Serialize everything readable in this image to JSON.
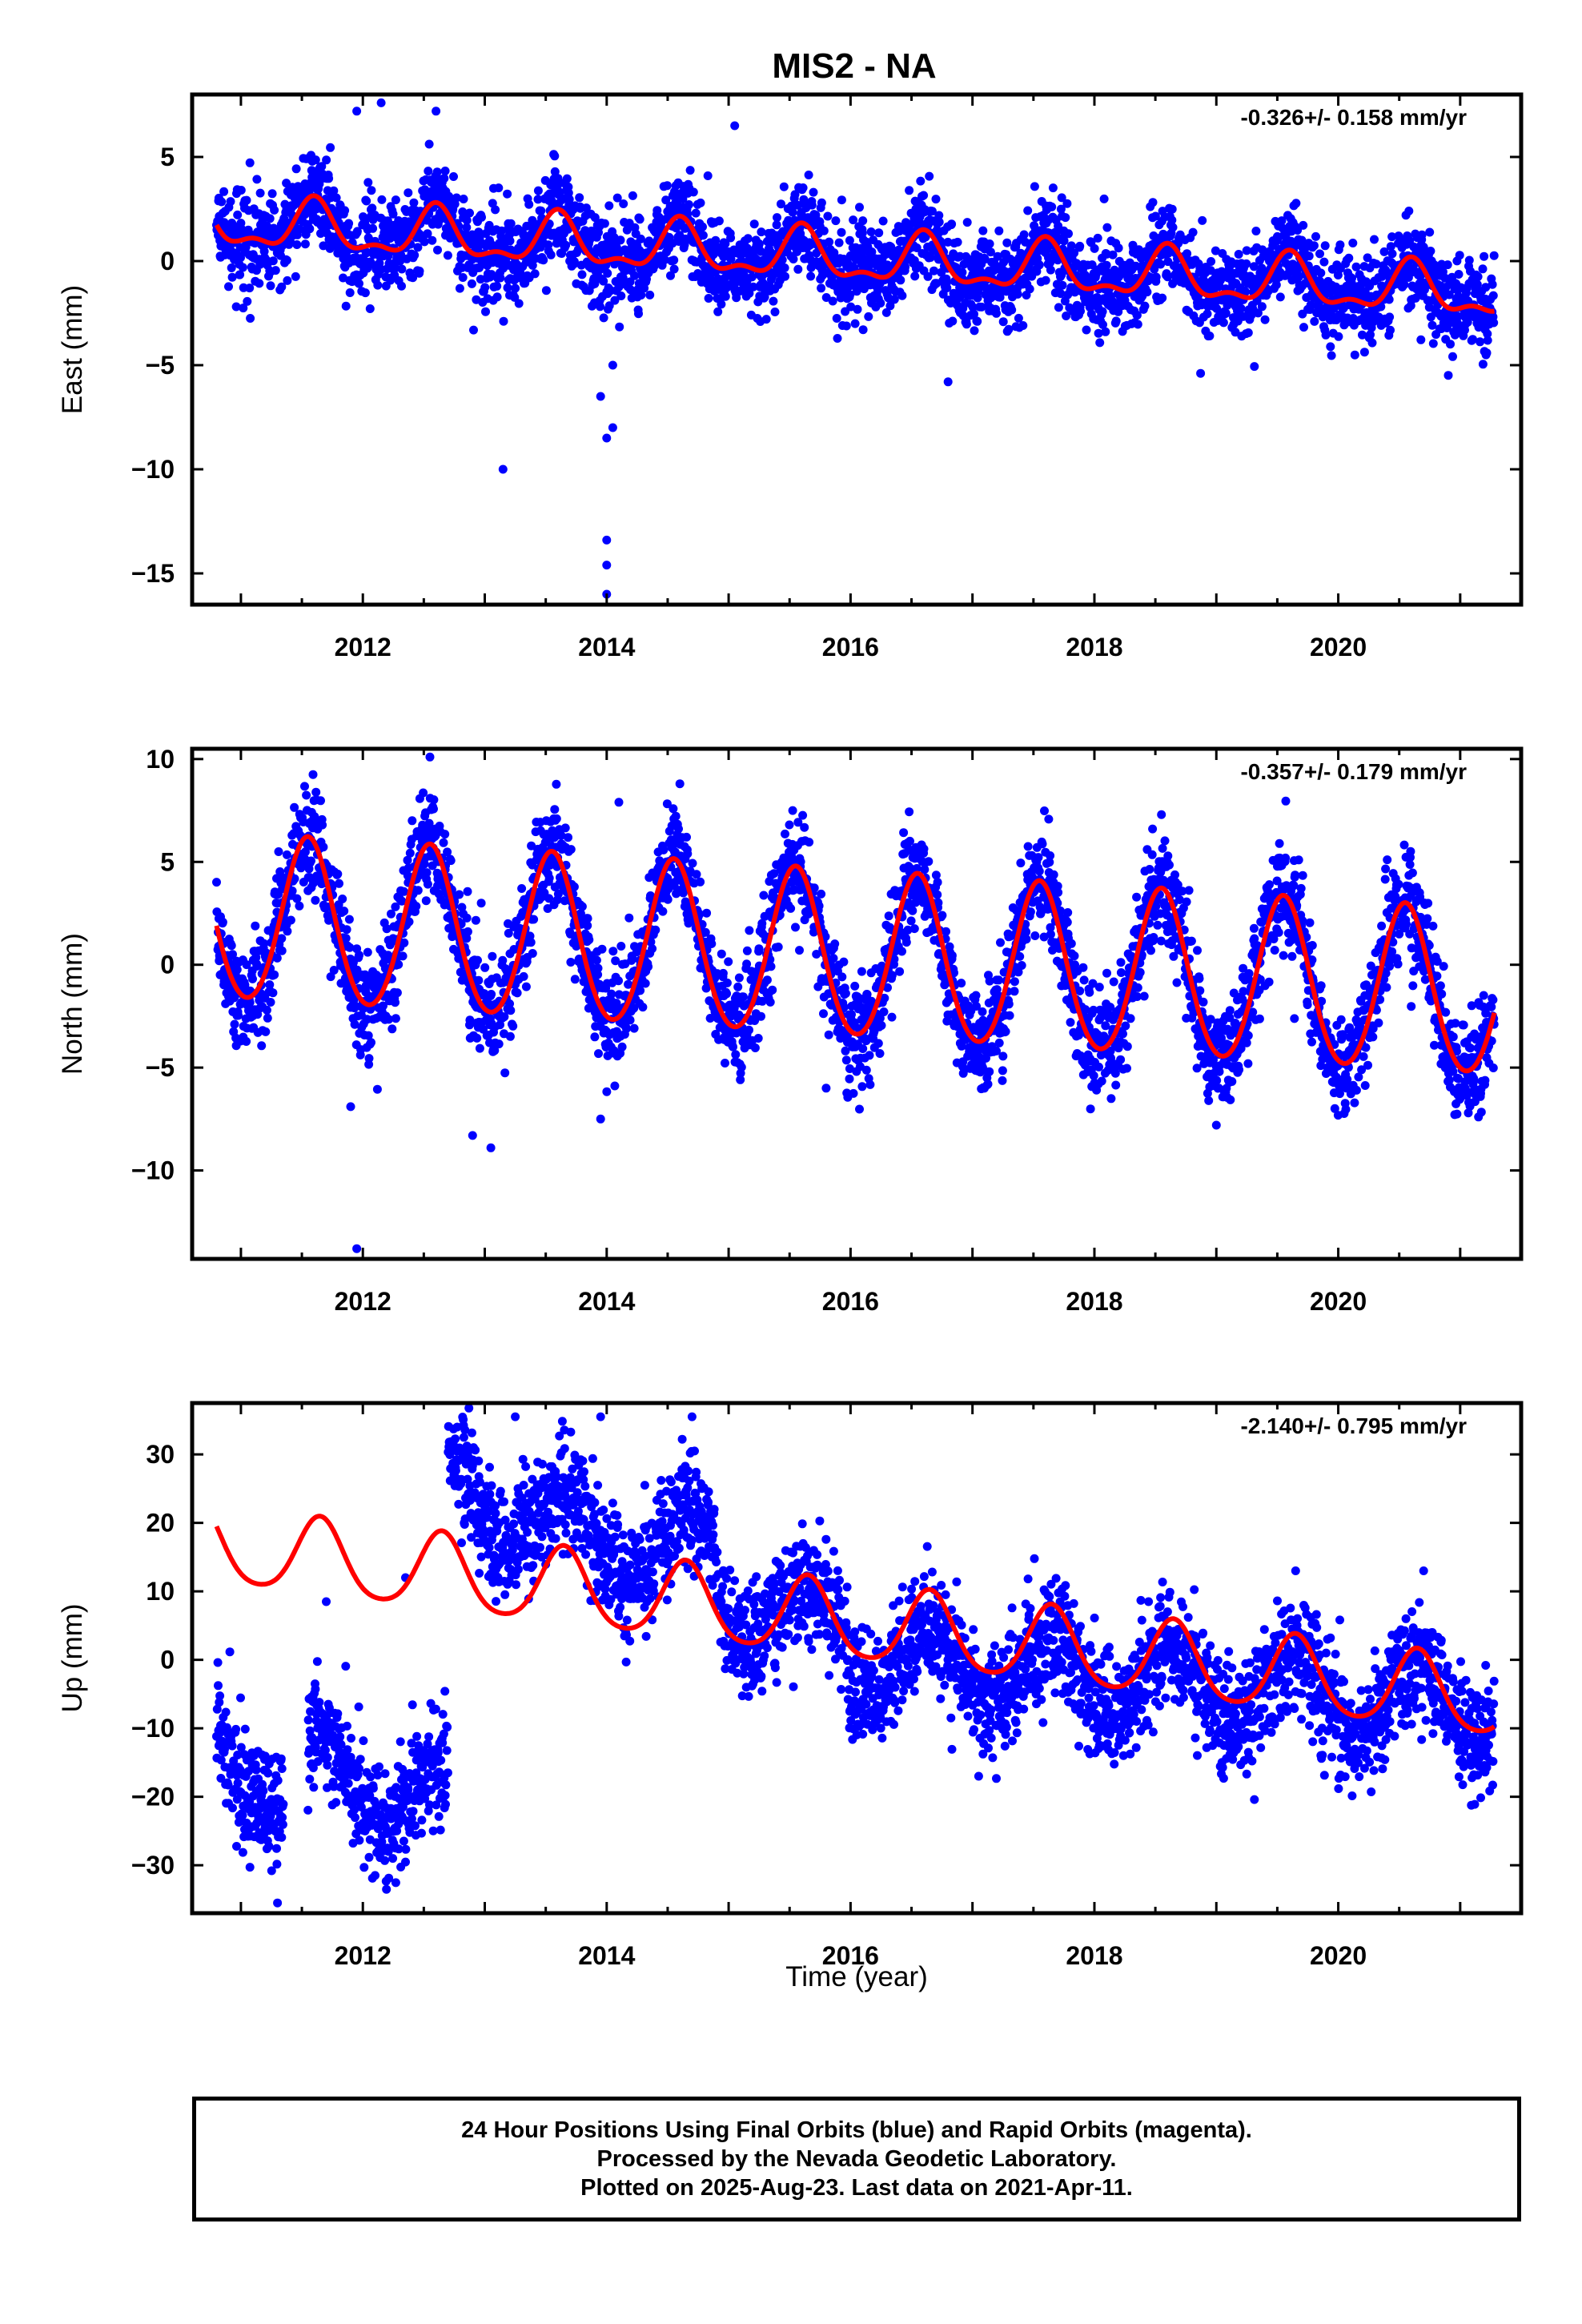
{
  "title": "MIS2 - NA",
  "xlabel": "Time (year)",
  "colors": {
    "data": "#0000ff",
    "model": "#ff0000",
    "frame": "#000000"
  },
  "chart_data": [
    {
      "type": "scatter",
      "ylabel": "East (mm)",
      "rate": "-0.326+/- 0.158 mm/yr",
      "xlim": [
        2010.6,
        2021.5
      ],
      "ylim": [
        -16.5,
        8
      ],
      "xticks": [
        2012,
        2014,
        2016,
        2018,
        2020
      ],
      "yticks": [
        5,
        0,
        -5,
        -10,
        -15
      ],
      "x_range": [
        2010.8,
        2021.28
      ],
      "trend": {
        "offset": 1.8,
        "slope": -0.326,
        "t0": 2010.8,
        "annual_amp": 1.1,
        "annual_phase_peak": 0.6,
        "semi_amp": 0.5
      },
      "scatter_sd": 1.1,
      "series": [
        {
          "role": "observed",
          "color": "#0000ff"
        },
        {
          "role": "model",
          "color": "#ff0000"
        }
      ],
      "outliers": [
        [
          2013.15,
          -10.0
        ],
        [
          2014.0,
          -13.4
        ],
        [
          2014.0,
          -14.6
        ],
        [
          2014.0,
          -16.0
        ],
        [
          2014.0,
          -8.5
        ],
        [
          2013.95,
          -6.5
        ],
        [
          2014.05,
          -8.0
        ],
        [
          2011.95,
          7.2
        ],
        [
          2012.15,
          7.6
        ],
        [
          2012.6,
          7.2
        ],
        [
          2015.05,
          6.5
        ],
        [
          2014.05,
          -5.0
        ],
        [
          2016.8,
          -5.8
        ]
      ]
    },
    {
      "type": "scatter",
      "ylabel": "North (mm)",
      "rate": "-0.357+/- 0.179 mm/yr",
      "xlim": [
        2010.6,
        2021.5
      ],
      "ylim": [
        -14.3,
        10.5
      ],
      "xticks": [
        2012,
        2014,
        2016,
        2018,
        2020
      ],
      "yticks": [
        10,
        5,
        0,
        -5,
        -10
      ],
      "x_range": [
        2010.8,
        2021.28
      ],
      "trend": {
        "offset": 2.2,
        "slope": -0.357,
        "t0": 2010.8,
        "annual_amp": 4.0,
        "annual_phase_peak": 0.55,
        "semi_amp": 0.3
      },
      "scatter_sd": 1.3,
      "series": [
        {
          "role": "observed",
          "color": "#0000ff"
        },
        {
          "role": "model",
          "color": "#ff0000"
        }
      ],
      "outliers": [
        [
          2011.95,
          -13.8
        ],
        [
          2012.55,
          10.1
        ],
        [
          2012.9,
          -8.3
        ],
        [
          2013.05,
          -8.9
        ],
        [
          2014.1,
          7.9
        ],
        [
          2014.6,
          8.8
        ],
        [
          2011.9,
          -6.9
        ],
        [
          2019.0,
          -7.8
        ],
        [
          2018.55,
          7.3
        ],
        [
          2021.15,
          -7.4
        ],
        [
          2013.95,
          -7.5
        ],
        [
          2015.8,
          -6.0
        ]
      ]
    },
    {
      "type": "scatter",
      "ylabel": "Up (mm)",
      "rate": "-2.140+/- 0.795 mm/yr",
      "xlim": [
        2010.6,
        2021.5
      ],
      "ylim": [
        -37,
        37.5
      ],
      "xticks": [
        2012,
        2014,
        2016,
        2018,
        2020
      ],
      "yticks": [
        30,
        20,
        10,
        0,
        -10,
        -20,
        -30
      ],
      "x_range": [
        2010.8,
        2021.28
      ],
      "trend": {
        "offset": 16.5,
        "slope": -2.14,
        "t0": 2010.8,
        "annual_amp": 5.5,
        "annual_phase_peak": 0.65,
        "semi_amp": 0.8
      },
      "scatter_sd": 4.2,
      "series": [
        {
          "role": "observed",
          "color": "#0000ff"
        },
        {
          "role": "model",
          "color": "#ff0000"
        }
      ],
      "segments": [
        {
          "x": [
            2010.8,
            2011.35
          ],
          "level": -12,
          "slope": -12
        },
        {
          "x": [
            2011.55,
            2012.7
          ],
          "level": -15,
          "slope": -6
        },
        {
          "x": [
            2012.7,
            2013.6
          ],
          "level": 26,
          "slope": -8
        },
        {
          "x": [
            2013.6,
            2014.9
          ],
          "level": 18,
          "slope": -2
        },
        {
          "x": [
            2014.9,
            2016.0
          ],
          "level": 10,
          "slope": -6
        },
        {
          "x": [
            2016.0,
            2021.28
          ],
          "level": 0,
          "slope": -1.3
        }
      ],
      "outliers": [
        [
          2011.3,
          -35.5
        ],
        [
          2013.25,
          35.5
        ],
        [
          2013.95,
          35.5
        ],
        [
          2014.7,
          35.5
        ],
        [
          2011.7,
          8.5
        ],
        [
          2019.65,
          13.0
        ],
        [
          2020.7,
          13.0
        ],
        [
          2012.35,
          12.0
        ]
      ]
    }
  ],
  "footer": {
    "line1": "24 Hour Positions Using Final Orbits (blue) and Rapid Orbits (magenta).",
    "line2": "Processed by the Nevada Geodetic Laboratory.",
    "line3": "Plotted on 2025-Aug-23. Last data on 2021-Apr-11."
  }
}
